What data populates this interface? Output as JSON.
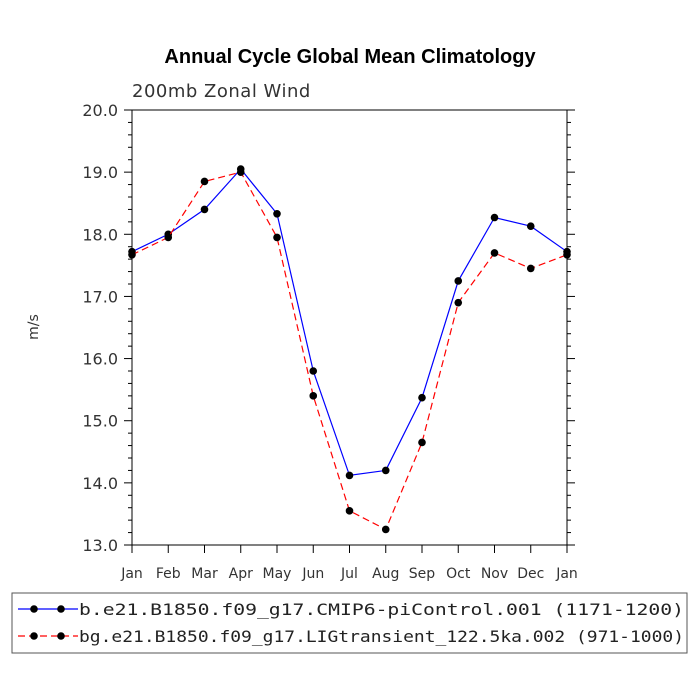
{
  "chart_data": {
    "type": "line",
    "title": "Annual Cycle Global Mean Climatology",
    "subtitle": "200mb Zonal Wind",
    "xlabel": "",
    "ylabel": "m/s",
    "categories": [
      "Jan",
      "Feb",
      "Mar",
      "Apr",
      "May",
      "Jun",
      "Jul",
      "Aug",
      "Sep",
      "Oct",
      "Nov",
      "Dec",
      "Jan"
    ],
    "ylim": [
      13.0,
      20.0
    ],
    "yticks": [
      "13.0",
      "14.0",
      "15.0",
      "16.0",
      "17.0",
      "18.0",
      "19.0",
      "20.0"
    ],
    "grid": false,
    "legend_position": "bottom",
    "series": [
      {
        "name": "b.e21.B1850.f09_g17.CMIP6-piControl.001 (1171-1200)",
        "values": [
          17.72,
          18.0,
          18.4,
          19.05,
          18.33,
          15.8,
          14.12,
          14.2,
          15.37,
          17.25,
          18.27,
          18.13,
          17.72
        ],
        "color": "#0000ff",
        "dash": "solid"
      },
      {
        "name": "bg.e21.B1850.f09_g17.LIGtransient_122.5ka.002 (971-1000)",
        "values": [
          17.67,
          17.95,
          18.85,
          19.0,
          17.95,
          15.4,
          13.55,
          13.25,
          14.65,
          16.9,
          17.7,
          17.45,
          17.67
        ],
        "color": "#ff0000",
        "dash": "dashed"
      }
    ]
  }
}
